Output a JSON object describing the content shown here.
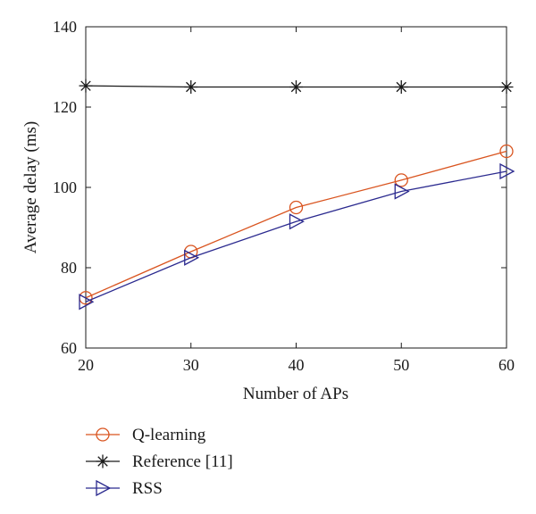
{
  "chart_data": {
    "type": "line",
    "xlabel": "Number of APs",
    "ylabel": "Average delay (ms)",
    "x": [
      20,
      30,
      40,
      50,
      60
    ],
    "xlim": [
      20,
      60
    ],
    "ylim": [
      60,
      140
    ],
    "xticks": [
      20,
      30,
      40,
      50,
      60
    ],
    "yticks": [
      60,
      80,
      100,
      120,
      140
    ],
    "grid": false,
    "legend_position": "below",
    "series": [
      {
        "name": "Q-learning",
        "values": [
          72.5,
          84,
          95,
          101.8,
          109
        ],
        "color": "#d9541f",
        "marker": "circle"
      },
      {
        "name": "Reference [11]",
        "values": [
          125.3,
          125,
          125,
          125,
          125
        ],
        "color": "#1a1a1a",
        "marker": "asterisk"
      },
      {
        "name": "RSS",
        "values": [
          71.5,
          82.5,
          91.5,
          99,
          104
        ],
        "color": "#2b2a8f",
        "marker": "triangle-right"
      }
    ]
  }
}
